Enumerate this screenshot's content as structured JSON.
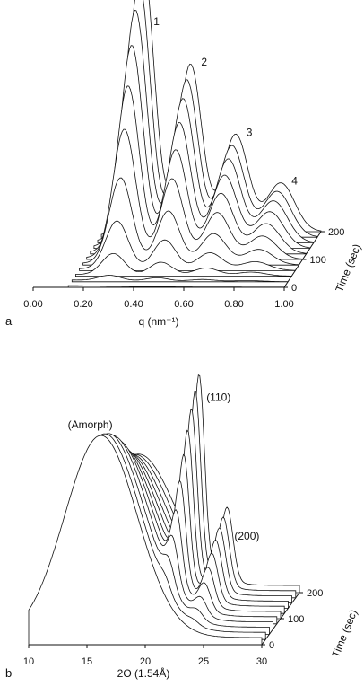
{
  "chart_data": [
    {
      "type": "line",
      "panel": "a",
      "title": "",
      "xlabel": "q (nm⁻¹)",
      "ylabel": "",
      "depth_label": "Time (sec)",
      "x_ticks": [
        "0.00",
        "0.20",
        "0.40",
        "0.60",
        "0.80",
        "1.00"
      ],
      "xlim": [
        0.0,
        1.0
      ],
      "time_ticks": [
        "0",
        "100",
        "200"
      ],
      "time_range": [
        0,
        200
      ],
      "peak_labels": [
        "1",
        "2",
        "3",
        "4"
      ],
      "peaks_q": [
        0.29,
        0.48,
        0.66,
        0.84
      ],
      "peak_widths": [
        0.045,
        0.045,
        0.05,
        0.055
      ],
      "final_peak_heights": [
        1.0,
        0.62,
        0.36,
        0.18
      ],
      "series_times": [
        0,
        20,
        40,
        60,
        80,
        100,
        120,
        140,
        160,
        180,
        200
      ],
      "series_intensity_scale": [
        0.0,
        0.02,
        0.08,
        0.18,
        0.32,
        0.48,
        0.62,
        0.75,
        0.86,
        0.94,
        1.0
      ]
    },
    {
      "type": "line",
      "panel": "b",
      "title": "",
      "xlabel": "2Θ (1.54Å)",
      "ylabel": "",
      "depth_label": "Time (sec)",
      "x_ticks": [
        "10",
        "15",
        "20",
        "25",
        "30"
      ],
      "xlim": [
        10,
        30
      ],
      "time_ticks": [
        "0",
        "100",
        "200"
      ],
      "time_range": [
        0,
        200
      ],
      "peak_labels": [
        "(Amorph)",
        "(110)",
        "(200)"
      ],
      "amorphous_center": 16.2,
      "amorphous_width": 3.1,
      "crystal_peaks_2theta": [
        21.4,
        23.8
      ],
      "crystal_peak_widths": [
        0.45,
        0.5
      ],
      "crystal_final_heights": [
        1.05,
        0.42
      ],
      "series_times": [
        0,
        20,
        40,
        60,
        80,
        100,
        120,
        140,
        160,
        180,
        200
      ],
      "series_crystallinity": [
        0.0,
        0.05,
        0.12,
        0.22,
        0.35,
        0.5,
        0.63,
        0.75,
        0.85,
        0.93,
        1.0
      ]
    }
  ]
}
